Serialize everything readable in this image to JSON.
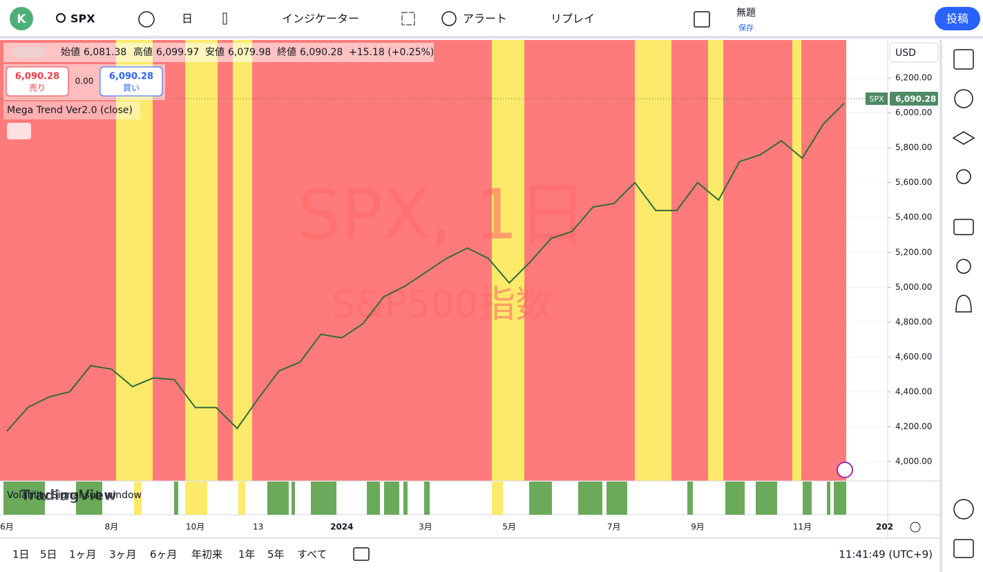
{
  "toolbar": {
    "avatar": "K",
    "symbol": "SPX",
    "interval": "日",
    "indicators": "インジケーター",
    "alert": "アラート",
    "replay": "リプレイ",
    "layout_name": "無題",
    "save": "保存",
    "publish": "投稿"
  },
  "legend": {
    "open_label": "始値",
    "open": "6,081.38",
    "high_label": "高値",
    "high": "6,099.97",
    "low_label": "安値",
    "low": "6,079.98",
    "close_label": "終値",
    "close": "6,090.28",
    "change": "+15.18 (+0.25%)"
  },
  "trade": {
    "sell_price": "6,090.28",
    "sell_label": "売り",
    "spread": "0.00",
    "buy_price": "6,090.28",
    "buy_label": "買い"
  },
  "indicator_name": "Mega Trend Ver2.0 (close)",
  "watermark": {
    "symbol": "SPX, 1日",
    "description": "S&P500指数"
  },
  "sub_panel": "Volatility Signal sub window",
  "brand": "TradingView",
  "currency": "USD",
  "last_price": {
    "symbol": "SPX",
    "value": "6,090.28"
  },
  "time_axis_extra": "202",
  "ranges": [
    "1日",
    "5日",
    "1ヶ月",
    "3ヶ月",
    "6ヶ月",
    "年初来",
    "1年",
    "5年",
    "すべて"
  ],
  "clock": "11:41:49 (UTC+9)",
  "chart_data": {
    "type": "line",
    "color": "#2f6b3a",
    "categories": [
      "6月",
      null,
      null,
      null,
      null,
      "8月",
      null,
      null,
      null,
      "10月",
      null,
      null,
      "13",
      null,
      null,
      null,
      "2024",
      null,
      null,
      null,
      "3月",
      null,
      null,
      null,
      "5月",
      null,
      null,
      null,
      null,
      "7月",
      null,
      null,
      null,
      "9月",
      null,
      null,
      null,
      null,
      "11月",
      null,
      null
    ],
    "values": [
      4175,
      4310,
      4370,
      4400,
      4550,
      4530,
      4430,
      4480,
      4470,
      4310,
      4310,
      4190,
      4360,
      4520,
      4570,
      4730,
      4710,
      4790,
      4945,
      5005,
      5085,
      5165,
      5225,
      5165,
      5025,
      5145,
      5280,
      5320,
      5460,
      5480,
      5600,
      5440,
      5440,
      5600,
      5500,
      5720,
      5760,
      5840,
      5740,
      5935,
      6055
    ],
    "ylim": [
      3889,
      6418
    ],
    "yticks": [
      {
        "value": 4000,
        "label": "4,000.00"
      },
      {
        "value": 4200,
        "label": "4,200.00"
      },
      {
        "value": 4400,
        "label": "4,400.00"
      },
      {
        "value": 4600,
        "label": "4,600.00"
      },
      {
        "value": 4800,
        "label": "4,800.00"
      },
      {
        "value": 5000,
        "label": "5,000.00"
      },
      {
        "value": 5200,
        "label": "5,200.00"
      },
      {
        "value": 5400,
        "label": "5,400.00"
      },
      {
        "value": 5600,
        "label": "5,600.00"
      },
      {
        "value": 5800,
        "label": "5,800.00"
      },
      {
        "value": 6000,
        "label": "6,000.00"
      },
      {
        "value": 6200,
        "label": "6,200.00"
      }
    ]
  }
}
